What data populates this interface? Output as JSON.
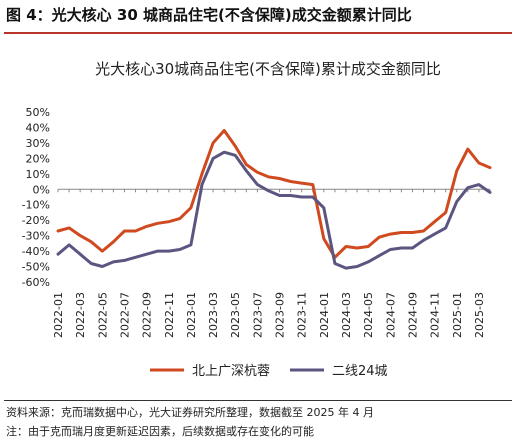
{
  "figure_title": "图 4：光大核心 30 城商品住宅(不含保障)成交金额累计同比",
  "notes": {
    "source": "资料来源：克而瑞数据中心，光大证券研究所整理，数据截至 2025 年 4 月",
    "remark": "注：由于克而瑞月度更新延迟因素，后续数据或存在变化的可能"
  },
  "colors": {
    "accent_rule": "#b8352a"
  },
  "chart_data": {
    "type": "line",
    "title": "光大核心30城商品住宅(不含保障)累计成交金额同比",
    "ylim": [
      -60,
      50
    ],
    "yticks": [
      50,
      40,
      30,
      20,
      10,
      0,
      -10,
      -20,
      -30,
      -40,
      -50,
      -60
    ],
    "ytick_labels": [
      "50%",
      "40%",
      "30%",
      "20%",
      "10%",
      "0%",
      "-10%",
      "-20%",
      "-30%",
      "-40%",
      "-50%",
      "-60%"
    ],
    "x": [
      "2022-01",
      "2022-02",
      "2022-03",
      "2022-04",
      "2022-05",
      "2022-06",
      "2022-07",
      "2022-08",
      "2022-09",
      "2022-10",
      "2022-11",
      "2022-12",
      "2023-01",
      "2023-02",
      "2023-03",
      "2023-04",
      "2023-05",
      "2023-06",
      "2023-07",
      "2023-08",
      "2023-09",
      "2023-10",
      "2023-11",
      "2023-12",
      "2024-01",
      "2024-02",
      "2024-03",
      "2024-04",
      "2024-05",
      "2024-06",
      "2024-07",
      "2024-08",
      "2024-09",
      "2024-10",
      "2024-11",
      "2024-12",
      "2025-01",
      "2025-02",
      "2025-03",
      "2025-04"
    ],
    "xticks_shown": [
      "2022-01",
      "2022-03",
      "2022-05",
      "2022-07",
      "2022-09",
      "2022-11",
      "2023-01",
      "2023-03",
      "2023-05",
      "2023-07",
      "2023-09",
      "2023-11",
      "2024-01",
      "2024-03",
      "2024-05",
      "2024-07",
      "2024-09",
      "2024-11",
      "2025-01",
      "2025-03"
    ],
    "grid": false,
    "legend_position": "bottom",
    "series": [
      {
        "name": "北上广深杭蓉",
        "color": "#d04a20",
        "values": [
          -27,
          -25,
          -30,
          -34,
          -40,
          -34,
          -27,
          -27,
          -24,
          -22,
          -21,
          -19,
          -12,
          10,
          30,
          38,
          28,
          16,
          11,
          8,
          7,
          5,
          4,
          3,
          -32,
          -44,
          -37,
          -38,
          -37,
          -31,
          -29,
          -28,
          -28,
          -27,
          -21,
          -15,
          12,
          26,
          17,
          14
        ]
      },
      {
        "name": "二线24城",
        "color": "#5a5680",
        "values": [
          -42,
          -36,
          -42,
          -48,
          -50,
          -47,
          -46,
          -44,
          -42,
          -40,
          -40,
          -39,
          -36,
          3,
          20,
          24,
          22,
          12,
          3,
          -1,
          -4,
          -4,
          -5,
          -5,
          -12,
          -48,
          -51,
          -50,
          -47,
          -43,
          -39,
          -38,
          -38,
          -33,
          -29,
          -25,
          -8,
          1,
          3,
          -2
        ]
      }
    ]
  }
}
